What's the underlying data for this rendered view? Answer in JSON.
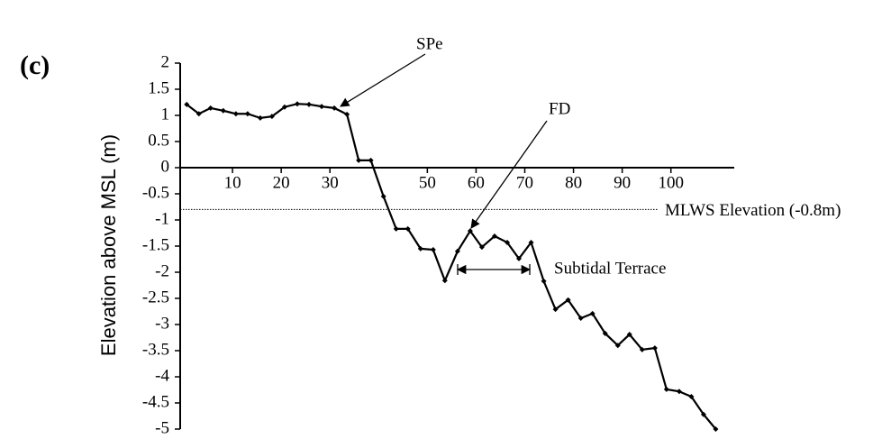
{
  "chart_data": {
    "type": "line",
    "panel_label": "(c)",
    "y_label": "Elevation above MSL (m)",
    "x": [
      0.6,
      3.1,
      5.5,
      8.1,
      10.7,
      13.1,
      15.7,
      18.1,
      20.7,
      23.3,
      25.7,
      28.3,
      30.9,
      33.5,
      35.9,
      38.4,
      41.0,
      43.6,
      46.0,
      48.6,
      51.2,
      53.6,
      56.2,
      58.8,
      61.2,
      63.8,
      66.4,
      68.8,
      71.3,
      73.9,
      76.3,
      78.9,
      81.5,
      83.9,
      86.5,
      89.1,
      91.5,
      94.1,
      96.7,
      99.1,
      101.7,
      104.2,
      106.7,
      109.2
    ],
    "series": [
      {
        "color": "#000000",
        "values": [
          1.21,
          1.03,
          1.14,
          1.09,
          1.03,
          1.03,
          0.95,
          0.98,
          1.16,
          1.22,
          1.21,
          1.17,
          1.14,
          1.02,
          0.14,
          0.14,
          -0.55,
          -1.17,
          -1.17,
          -1.55,
          -1.57,
          -2.16,
          -1.6,
          -1.21,
          -1.52,
          -1.31,
          -1.43,
          -1.74,
          -1.43,
          -2.17,
          -2.71,
          -2.53,
          -2.88,
          -2.79,
          -3.17,
          -3.4,
          -3.19,
          -3.48,
          -3.45,
          -4.24,
          -4.28,
          -4.38,
          -4.72,
          -5.0
        ]
      }
    ],
    "xlim": [
      0,
      113
    ],
    "xticks": [
      10,
      20,
      30,
      50,
      60,
      70,
      80,
      90,
      100
    ],
    "ylim": [
      -5,
      2
    ],
    "yticks": [
      2,
      1.5,
      1,
      0.5,
      0,
      -0.5,
      -1,
      -1.5,
      -2,
      -2.5,
      -3,
      -3.5,
      -4,
      -4.5,
      -5
    ],
    "reference_line": {
      "value": -0.8,
      "label": "MLWS Elevation (-0.8m)"
    },
    "annotations": [
      "SPe",
      "FD",
      "Subtidal Terrace"
    ]
  }
}
